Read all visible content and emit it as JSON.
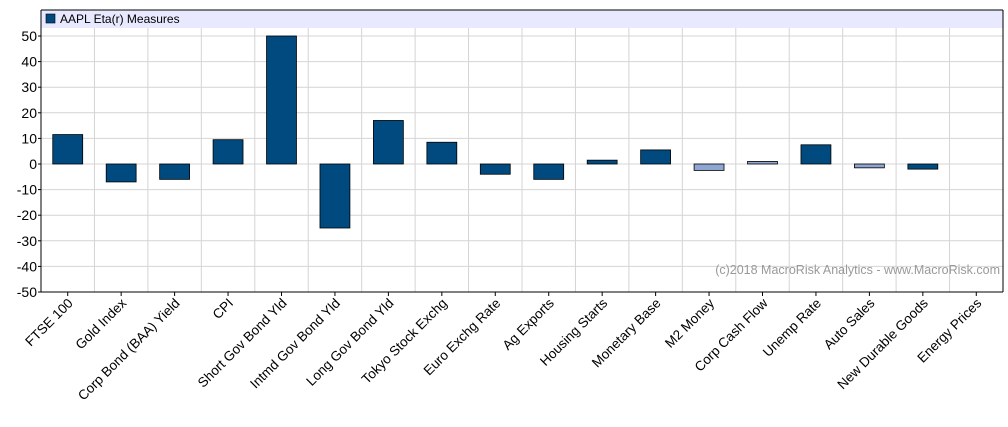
{
  "chart_data": {
    "type": "bar",
    "legend": {
      "label": "AAPL Eta(r) Measures",
      "placement": "top-left"
    },
    "categories": [
      "FTSE 100",
      "Gold Index",
      "Corp Bond (BAA) Yield",
      "CPI",
      "Short Gov Bond Yld",
      "Intmd Gov Bond Yld",
      "Long Gov Bond Yld",
      "Tokyo Stock Exchg",
      "Euro Exchg Rate",
      "Ag Exports",
      "Housing Starts",
      "Monetary Base",
      "M2 Money",
      "Corp Cash Flow",
      "Unemp Rate",
      "Auto Sales",
      "New Durable Goods",
      "Energy Prices"
    ],
    "values": [
      11.5,
      -7,
      -6,
      9.5,
      50,
      -25,
      17,
      8.5,
      -4,
      -6,
      1.5,
      5.5,
      -2.5,
      1,
      7.5,
      -1.5,
      -2,
      0
    ],
    "significant": [
      true,
      true,
      true,
      true,
      true,
      true,
      true,
      true,
      true,
      true,
      true,
      true,
      false,
      false,
      true,
      false,
      true,
      true
    ],
    "ylim": [
      -50,
      50
    ],
    "yticks": [
      50,
      40,
      30,
      20,
      10,
      0,
      -10,
      -20,
      -30,
      -40,
      -50
    ],
    "grid": true,
    "colors": {
      "bar": "#004a80",
      "bar_light": "#8fa6d2",
      "legend_band": "#e8e8ff",
      "grid": "#d4d4d4"
    },
    "watermark": "(c)2018 MacroRisk Analytics - www.MacroRisk.com"
  }
}
